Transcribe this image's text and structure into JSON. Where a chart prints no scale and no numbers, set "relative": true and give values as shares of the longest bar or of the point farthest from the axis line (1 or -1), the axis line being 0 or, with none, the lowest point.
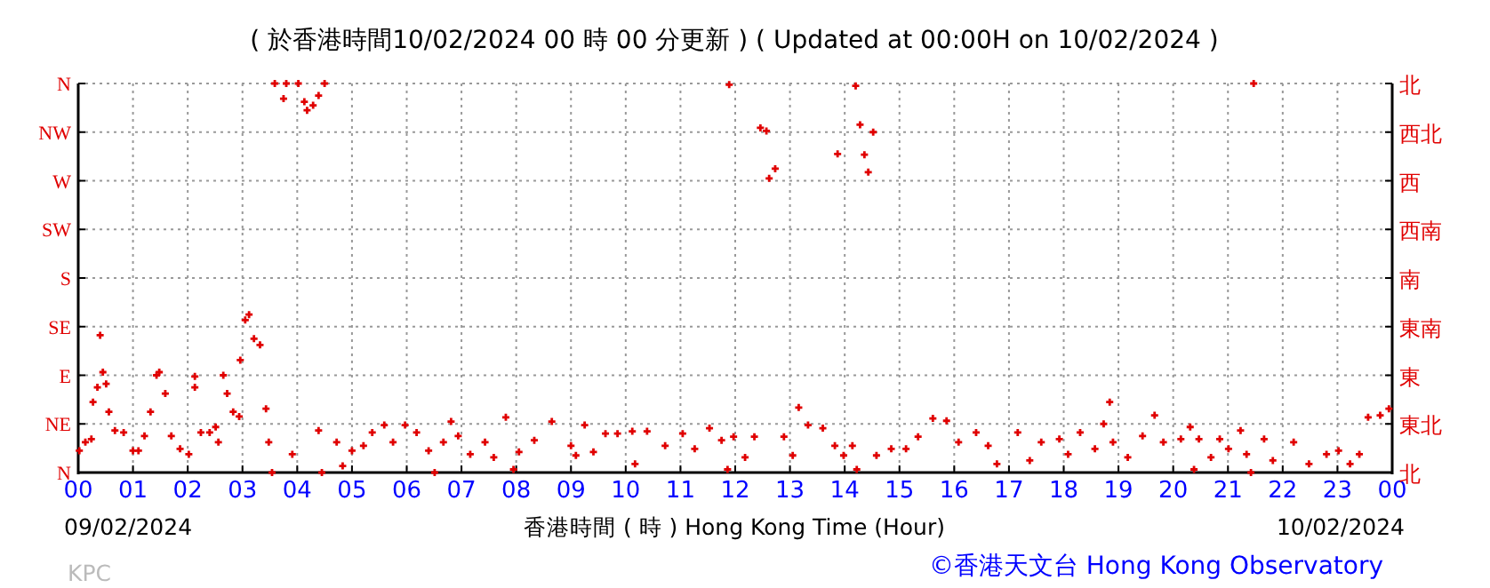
{
  "chart_data": {
    "type": "scatter",
    "title": "( 於香港時間10/02/2024 00 時 00 分更新 ) ( Updated at 00:00H on 10/02/2024 )",
    "xlabel": "香港時間 ( 時 ) Hong Kong Time (Hour)",
    "annotations": [
      "09/02/2024",
      "10/02/2024",
      "KPC",
      "©香港天文台 Hong Kong Observatory"
    ],
    "color": "#e00000",
    "marker": "cross",
    "grid": true,
    "xlim": [
      0,
      24
    ],
    "xticks": [
      {
        "value": 0,
        "label": "00"
      },
      {
        "value": 1,
        "label": "01"
      },
      {
        "value": 2,
        "label": "02"
      },
      {
        "value": 3,
        "label": "03"
      },
      {
        "value": 4,
        "label": "04"
      },
      {
        "value": 5,
        "label": "05"
      },
      {
        "value": 6,
        "label": "06"
      },
      {
        "value": 7,
        "label": "07"
      },
      {
        "value": 8,
        "label": "08"
      },
      {
        "value": 9,
        "label": "09"
      },
      {
        "value": 10,
        "label": "10"
      },
      {
        "value": 11,
        "label": "11"
      },
      {
        "value": 12,
        "label": "12"
      },
      {
        "value": 13,
        "label": "13"
      },
      {
        "value": 14,
        "label": "14"
      },
      {
        "value": 15,
        "label": "15"
      },
      {
        "value": 16,
        "label": "16"
      },
      {
        "value": 17,
        "label": "17"
      },
      {
        "value": 18,
        "label": "18"
      },
      {
        "value": 19,
        "label": "19"
      },
      {
        "value": 20,
        "label": "20"
      },
      {
        "value": 21,
        "label": "21"
      },
      {
        "value": 22,
        "label": "22"
      },
      {
        "value": 23,
        "label": "23"
      },
      {
        "value": 24,
        "label": "00"
      }
    ],
    "relative": true,
    "y_categories": [
      "N",
      "NW",
      "W",
      "SW",
      "S",
      "SE",
      "E",
      "NE",
      "N"
    ],
    "y2_categories": [
      "北",
      "西北",
      "西",
      "西南",
      "南",
      "東南",
      "東",
      "東北",
      "北"
    ],
    "x": [
      0.02,
      0.13,
      0.24,
      0.27,
      0.35,
      0.4,
      0.45,
      0.51,
      0.56,
      0.67,
      0.83,
      1.0,
      1.1,
      1.21,
      1.32,
      1.43,
      1.48,
      1.59,
      1.7,
      1.86,
      2.02,
      2.13,
      2.13,
      2.24,
      2.4,
      2.51,
      2.56,
      2.65,
      2.72,
      2.83,
      2.94,
      2.96,
      3.05,
      3.12,
      3.21,
      3.32,
      3.43,
      3.48,
      3.54,
      3.59,
      3.75,
      3.8,
      3.91,
      4.02,
      4.13,
      4.18,
      4.29,
      4.39,
      4.5,
      4.39,
      4.45,
      4.72,
      4.83,
      5.0,
      5.21,
      5.37,
      5.59,
      5.75,
      5.97,
      6.18,
      6.4,
      6.51,
      6.67,
      6.81,
      6.94,
      7.16,
      7.43,
      7.59,
      7.81,
      7.95,
      8.05,
      8.33,
      8.65,
      9.0,
      9.09,
      9.25,
      9.41,
      9.63,
      9.85,
      10.12,
      10.17,
      10.39,
      10.72,
      11.04,
      11.26,
      11.53,
      11.75,
      11.86,
      11.89,
      11.97,
      12.18,
      12.35,
      12.46,
      12.57,
      12.62,
      12.73,
      12.89,
      13.05,
      13.16,
      13.33,
      13.6,
      13.82,
      13.87,
      13.98,
      14.2,
      14.28,
      14.36,
      14.43,
      14.52,
      14.14,
      14.22,
      14.58,
      14.85,
      15.12,
      15.34,
      15.61,
      15.86,
      16.08,
      16.4,
      16.62,
      16.78,
      17.16,
      17.38,
      17.59,
      17.92,
      18.08,
      18.3,
      18.57,
      18.73,
      18.84,
      18.9,
      19.17,
      19.44,
      19.66,
      19.82,
      20.14,
      20.31,
      20.38,
      20.47,
      20.69,
      20.85,
      21.01,
      21.23,
      21.34,
      21.42,
      21.47,
      21.66,
      21.82,
      22.2,
      22.48,
      22.8,
      23.02,
      23.23,
      23.4,
      23.56,
      23.78,
      23.94
    ],
    "values": [
      0.056,
      0.078,
      0.086,
      0.181,
      0.219,
      0.353,
      0.258,
      0.228,
      0.156,
      0.108,
      0.103,
      0.056,
      0.056,
      0.094,
      0.156,
      0.25,
      0.258,
      0.203,
      0.094,
      0.061,
      0.047,
      0.247,
      0.219,
      0.103,
      0.103,
      0.117,
      0.078,
      0.25,
      0.203,
      0.156,
      0.144,
      0.289,
      0.392,
      0.406,
      0.344,
      0.328,
      0.164,
      0.078,
      0,
      1,
      0.961,
      1,
      0.047,
      1,
      0.953,
      0.931,
      0.944,
      0.969,
      1,
      0.108,
      0,
      0.078,
      0.017,
      0.056,
      0.069,
      0.103,
      0.122,
      0.078,
      0.122,
      0.103,
      0.056,
      0,
      0.078,
      0.131,
      0.094,
      0.047,
      0.078,
      0.039,
      0.142,
      0.008,
      0.053,
      0.083,
      0.131,
      0.069,
      0.044,
      0.122,
      0.053,
      0.1,
      0.1,
      0.106,
      0.022,
      0.106,
      0.069,
      0.1,
      0.061,
      0.114,
      0.083,
      0.008,
      0.997,
      0.092,
      0.039,
      0.092,
      0.886,
      0.878,
      0.756,
      0.781,
      0.092,
      0.044,
      0.167,
      0.122,
      0.114,
      0.069,
      0.819,
      0.044,
      0.994,
      0.894,
      0.817,
      0.772,
      0.875,
      0.069,
      0.008,
      0.044,
      0.061,
      0.061,
      0.092,
      0.139,
      0.133,
      0.078,
      0.103,
      0.069,
      0.022,
      0.103,
      0.031,
      0.078,
      0.086,
      0.047,
      0.103,
      0.061,
      0.125,
      0.181,
      0.078,
      0.039,
      0.094,
      0.147,
      0.078,
      0.086,
      0.117,
      0.008,
      0.086,
      0.039,
      0.086,
      0.061,
      0.108,
      0.047,
      0,
      1,
      0.086,
      0.031,
      0.078,
      0.022,
      0.047,
      0.056,
      0.022,
      0.047,
      0.142,
      0.147,
      0.164
    ]
  }
}
